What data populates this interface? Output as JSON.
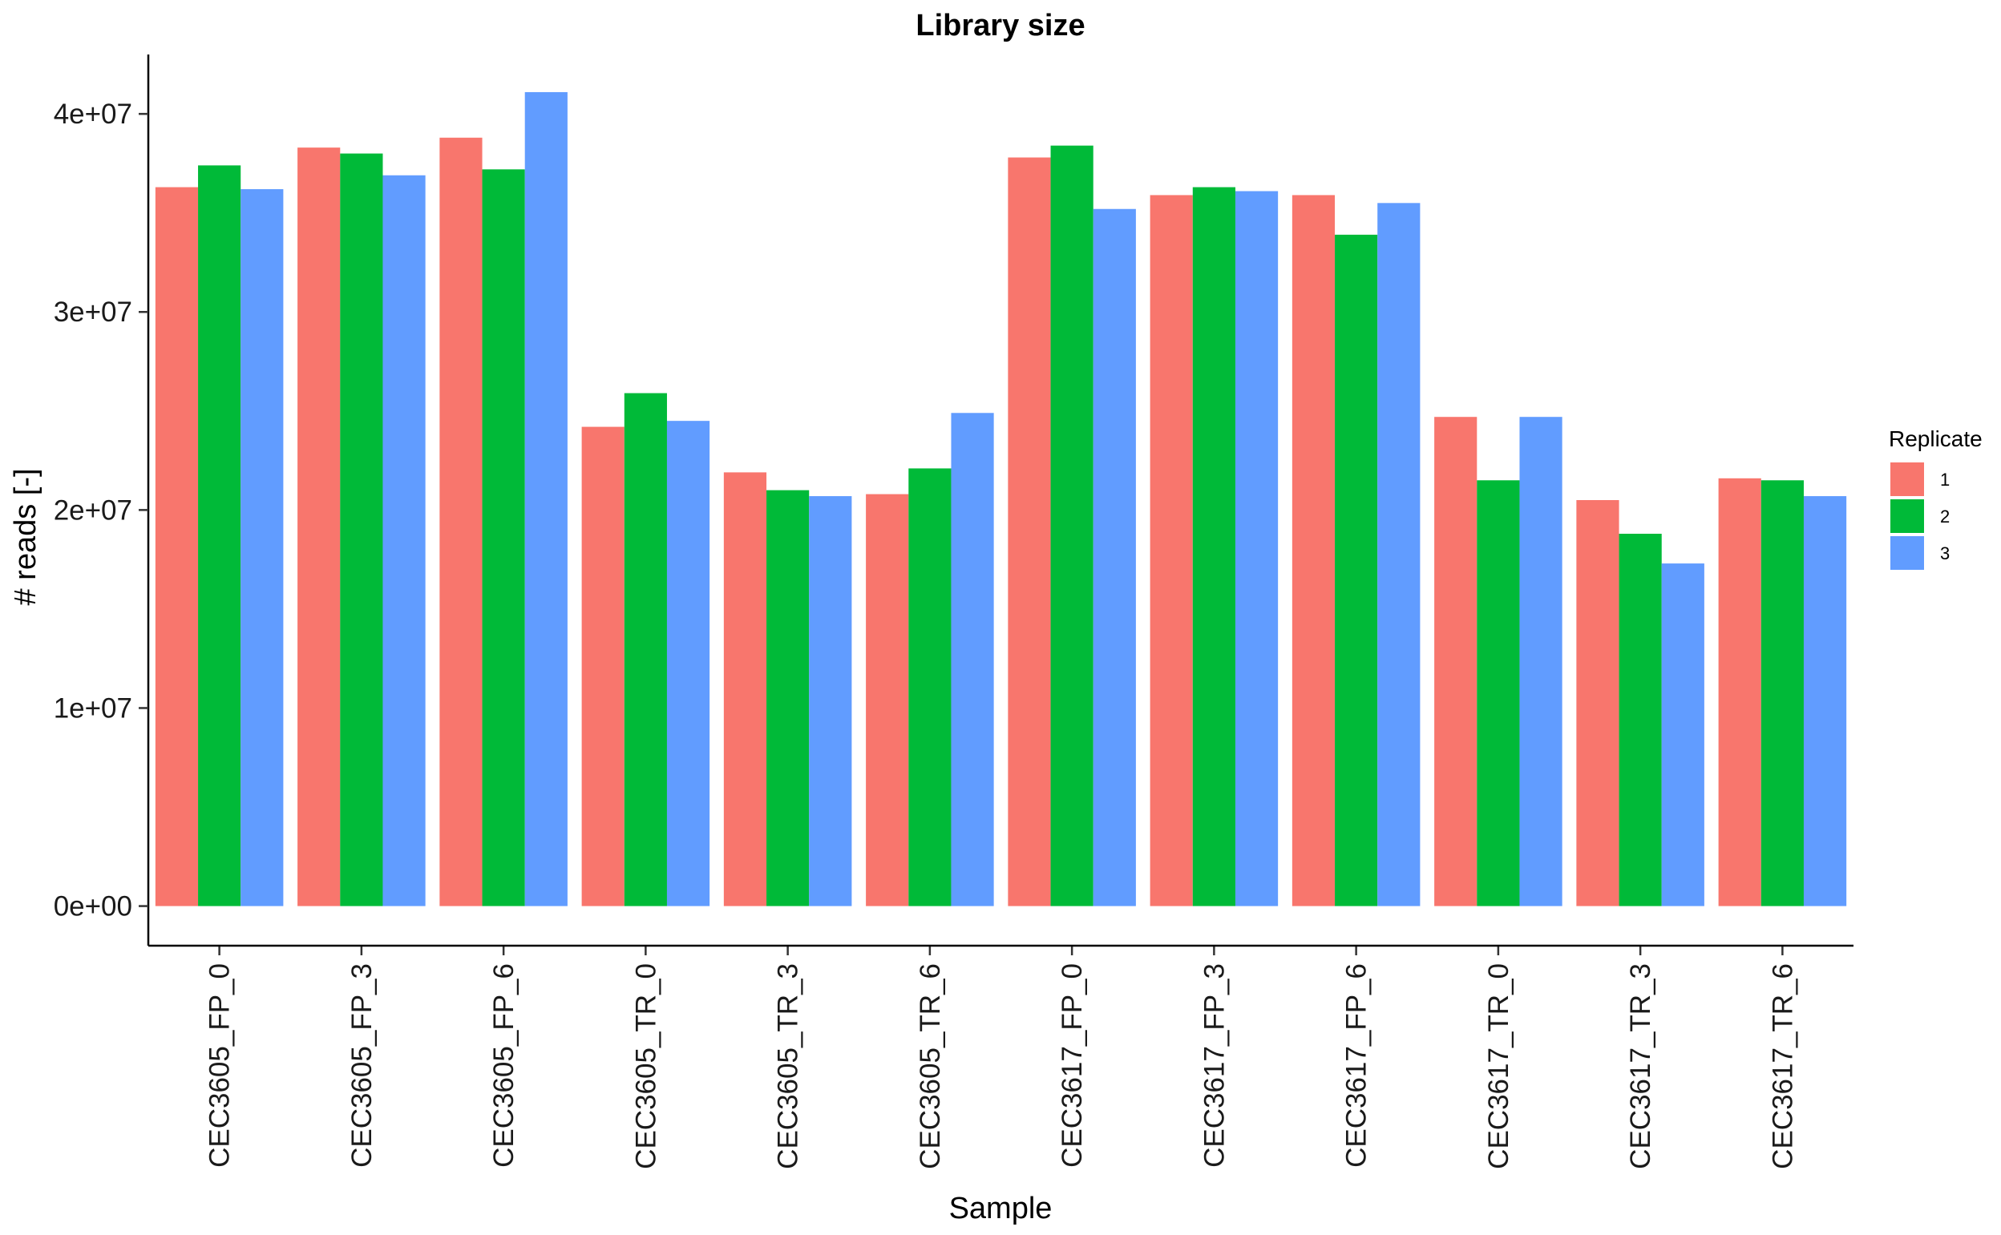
{
  "chart_data": {
    "type": "bar",
    "title": "Library size",
    "xlabel": "Sample",
    "ylabel": "# reads [-]",
    "categories": [
      "CEC3605_FP_0",
      "CEC3605_FP_3",
      "CEC3605_FP_6",
      "CEC3605_TR_0",
      "CEC3605_TR_3",
      "CEC3605_TR_6",
      "CEC3617_FP_0",
      "CEC3617_FP_3",
      "CEC3617_FP_6",
      "CEC3617_TR_0",
      "CEC3617_TR_3",
      "CEC3617_TR_6"
    ],
    "series": [
      {
        "name": "1",
        "color": "#F8766D",
        "values": [
          36300000,
          38300000,
          38800000,
          24200000,
          21900000,
          20800000,
          37800000,
          35900000,
          35900000,
          24700000,
          20500000,
          21600000
        ]
      },
      {
        "name": "2",
        "color": "#00BA38",
        "values": [
          37400000,
          38000000,
          37200000,
          25900000,
          21000000,
          22100000,
          38400000,
          36300000,
          33900000,
          21500000,
          18800000,
          21500000
        ]
      },
      {
        "name": "3",
        "color": "#619CFF",
        "values": [
          36200000,
          36900000,
          41100000,
          24500000,
          20700000,
          24900000,
          35200000,
          36100000,
          35500000,
          24700000,
          17300000,
          20700000
        ]
      }
    ],
    "ylim": [
      -2000000,
      43000000
    ],
    "yticks": [
      0,
      10000000,
      20000000,
      30000000,
      40000000
    ],
    "ytick_labels": [
      "0e+00",
      "1e+07",
      "2e+07",
      "3e+07",
      "4e+07"
    ],
    "grid": false,
    "legend": {
      "title": "Replicate",
      "position": "right"
    }
  }
}
